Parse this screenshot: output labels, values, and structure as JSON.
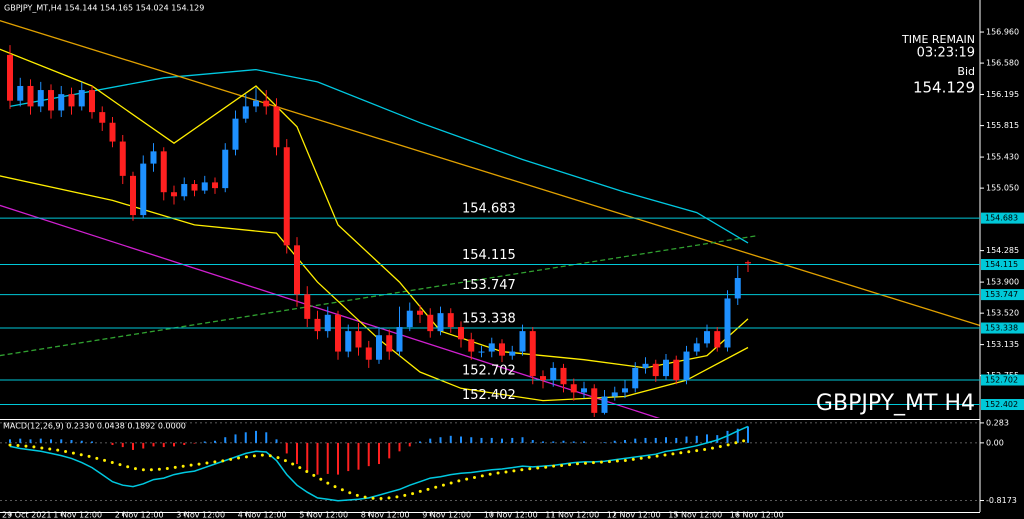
{
  "chart_data": [
    {
      "type": "candlestick",
      "header": "GBPJPY_MT,H4  154.144 154.165 154.024 154.129",
      "watermark": "GBPJPY_MT H4",
      "time_remain_label": "TIME REMAIN",
      "time_remain": "03:23:19",
      "bid_label": "Bid",
      "bid": 154.129,
      "categories": [
        "29 Oct 2021",
        null,
        null,
        null,
        null,
        "1 Nov 12:00",
        null,
        null,
        null,
        null,
        null,
        "2 Nov 12:00",
        null,
        null,
        null,
        null,
        null,
        "3 Nov 12:00",
        null,
        null,
        null,
        null,
        null,
        "4 Nov 12:00",
        null,
        null,
        null,
        null,
        null,
        "5 Nov 12:00",
        null,
        null,
        null,
        null,
        null,
        "8 Nov 12:00",
        null,
        null,
        null,
        null,
        null,
        "9 Nov 12:00",
        null,
        null,
        null,
        null,
        null,
        "10 Nov 12:00",
        null,
        null,
        null,
        null,
        null,
        "11 Nov 12:00",
        null,
        null,
        null,
        null,
        null,
        "12 Nov 12:00",
        null,
        null,
        null,
        null,
        null,
        "15 Nov 12:00",
        null,
        null,
        null,
        null,
        null,
        "16 Nov 12:00",
        null
      ],
      "open": [
        156.68,
        156.12,
        156.3,
        156.05,
        156.25,
        156.0,
        156.2,
        156.05,
        156.25,
        155.98,
        155.85,
        155.62,
        155.2,
        154.72,
        155.35,
        155.5,
        155.0,
        154.95,
        155.1,
        155.02,
        155.12,
        155.05,
        155.52,
        155.9,
        156.05,
        156.12,
        156.05,
        155.55,
        154.35,
        153.75,
        153.45,
        153.3,
        153.5,
        153.05,
        153.3,
        153.1,
        152.95,
        153.25,
        153.05,
        153.35,
        153.55,
        153.5,
        153.3,
        153.52,
        153.35,
        153.2,
        153.05,
        153.05,
        153.15,
        153.0,
        153.05,
        153.3,
        152.75,
        152.7,
        152.85,
        152.65,
        152.55,
        152.6,
        152.3,
        152.5,
        152.55,
        152.6,
        152.85,
        152.9,
        152.75,
        152.95,
        152.7,
        153.05,
        153.15,
        153.3,
        153.1,
        153.7,
        154.144
      ],
      "high": [
        156.8,
        156.4,
        156.38,
        156.35,
        156.32,
        156.3,
        156.28,
        156.35,
        156.3,
        156.05,
        155.92,
        155.7,
        155.25,
        155.45,
        155.6,
        155.55,
        155.08,
        155.18,
        155.15,
        155.2,
        155.18,
        155.6,
        156.0,
        156.2,
        156.28,
        156.25,
        156.15,
        155.65,
        154.45,
        153.85,
        153.55,
        153.6,
        153.55,
        153.38,
        153.4,
        153.18,
        153.35,
        153.32,
        153.6,
        153.65,
        153.62,
        153.58,
        153.6,
        153.58,
        153.42,
        153.28,
        153.12,
        153.22,
        153.2,
        153.12,
        153.38,
        153.35,
        152.82,
        152.92,
        152.9,
        152.72,
        152.68,
        152.65,
        152.58,
        152.62,
        152.7,
        152.92,
        152.98,
        152.95,
        153.02,
        153.0,
        153.12,
        153.22,
        153.38,
        153.35,
        153.8,
        154.1,
        154.165
      ],
      "low": [
        156.02,
        156.05,
        155.95,
        155.98,
        155.9,
        155.92,
        155.95,
        156.0,
        155.9,
        155.75,
        155.55,
        155.1,
        154.65,
        154.68,
        155.25,
        154.9,
        154.85,
        154.9,
        154.95,
        154.98,
        154.98,
        155.0,
        155.45,
        155.85,
        155.98,
        155.95,
        155.45,
        154.25,
        153.6,
        153.35,
        153.2,
        153.22,
        152.95,
        152.98,
        153.0,
        152.85,
        152.9,
        152.95,
        153.0,
        153.3,
        153.4,
        153.22,
        153.25,
        153.28,
        153.1,
        152.95,
        152.98,
        152.98,
        152.92,
        152.95,
        153.0,
        152.65,
        152.6,
        152.62,
        152.55,
        152.45,
        152.48,
        152.25,
        152.28,
        152.45,
        152.48,
        152.55,
        152.78,
        152.68,
        152.7,
        152.65,
        152.65,
        153.0,
        153.1,
        153.05,
        153.05,
        153.62,
        154.024
      ],
      "close": [
        156.12,
        156.3,
        156.05,
        156.25,
        156.0,
        156.2,
        156.05,
        156.25,
        155.98,
        155.85,
        155.62,
        155.2,
        154.72,
        155.35,
        155.5,
        155.0,
        154.95,
        155.1,
        155.02,
        155.12,
        155.05,
        155.52,
        155.9,
        156.05,
        156.12,
        156.05,
        155.55,
        154.35,
        153.75,
        153.45,
        153.3,
        153.5,
        153.05,
        153.3,
        153.1,
        152.95,
        153.25,
        153.05,
        153.35,
        153.55,
        153.5,
        153.3,
        153.52,
        153.35,
        153.2,
        153.05,
        153.05,
        153.15,
        153.0,
        153.05,
        153.3,
        152.75,
        152.7,
        152.85,
        152.65,
        152.55,
        152.6,
        152.3,
        152.5,
        152.55,
        152.6,
        152.85,
        152.9,
        152.75,
        152.95,
        152.7,
        153.05,
        153.15,
        153.3,
        153.1,
        153.7,
        153.95,
        154.129
      ],
      "up_color": "#1e90ff",
      "down_color": "#ff2020",
      "ylim": [
        152.237,
        157.352
      ],
      "yticks": [
        {
          "value": 156.96,
          "label": "156.960"
        },
        {
          "value": 156.58,
          "label": "156.580"
        },
        {
          "value": 156.195,
          "label": "156.195"
        },
        {
          "value": 155.815,
          "label": "155.815"
        },
        {
          "value": 155.43,
          "label": "155.430"
        },
        {
          "value": 155.05,
          "label": "155.050"
        },
        {
          "value": 154.285,
          "label": "154.285"
        },
        {
          "value": 153.9,
          "label": "153.900"
        },
        {
          "value": 153.52,
          "label": "153.520"
        },
        {
          "value": 153.135,
          "label": "153.135"
        },
        {
          "value": 152.755,
          "label": "152.755"
        }
      ],
      "levels": {
        "color": "#00c8d8",
        "values": [
          154.683,
          154.115,
          153.747,
          153.338,
          152.702,
          152.402
        ]
      },
      "overlays": [
        {
          "color": "#00c8e0",
          "points": [
            [
              0,
              156.05
            ],
            [
              15,
              156.4
            ],
            [
              24,
              156.5
            ],
            [
              30,
              156.35
            ],
            [
              40,
              155.85
            ],
            [
              50,
              155.4
            ],
            [
              60,
              155.0
            ],
            [
              67,
              154.75
            ],
            [
              72,
              154.38
            ]
          ]
        },
        {
          "color": "#e0a000",
          "points": [
            [
              -1,
              157.1
            ],
            [
              94.6,
              153.37
            ]
          ]
        },
        {
          "color": "#d020d0",
          "points": [
            [
              -1,
              154.84
            ],
            [
              63.4,
              152.23
            ]
          ]
        },
        {
          "color": "#30a030",
          "dash": true,
          "points": [
            [
              -1,
              153.0
            ],
            [
              73,
              154.47
            ]
          ]
        },
        {
          "color": "#ffee00",
          "points": [
            [
              -1,
              156.75
            ],
            [
              8,
              156.3
            ],
            [
              16,
              155.6
            ],
            [
              24,
              156.3
            ],
            [
              28,
              155.8
            ],
            [
              32,
              154.6
            ],
            [
              38,
              153.9
            ],
            [
              42,
              153.3
            ],
            [
              48,
              153.05
            ],
            [
              56,
              152.95
            ],
            [
              62,
              152.85
            ],
            [
              68,
              153.0
            ],
            [
              72,
              153.45
            ]
          ]
        },
        {
          "color": "#ffee00",
          "points": [
            [
              -1,
              155.2
            ],
            [
              10,
              154.9
            ],
            [
              18,
              154.6
            ],
            [
              26,
              154.5
            ],
            [
              30,
              153.9
            ],
            [
              36,
              153.2
            ],
            [
              40,
              152.8
            ],
            [
              44,
              152.6
            ],
            [
              52,
              152.45
            ],
            [
              60,
              152.5
            ],
            [
              66,
              152.7
            ],
            [
              72,
              153.1
            ]
          ]
        }
      ]
    },
    {
      "type": "macd",
      "label": "MACD(12,26,9) 0.2330 0.0438 0.1892 0.0000",
      "ylim": [
        -0.98,
        0.31
      ],
      "yticks": [
        0.283,
        {
          "value": 0,
          "label": "0.00"
        },
        -0.8173
      ],
      "histogram": {
        "up_color": "#1e90ff",
        "down_color": "#ff2020",
        "values": [
          0.05,
          0.06,
          0.05,
          0.06,
          0.05,
          0.05,
          0.04,
          0.03,
          0.02,
          0.0,
          -0.03,
          -0.06,
          -0.1,
          -0.08,
          -0.05,
          -0.06,
          -0.05,
          -0.03,
          -0.01,
          0.02,
          0.03,
          0.08,
          0.12,
          0.15,
          0.17,
          0.15,
          0.05,
          -0.15,
          -0.3,
          -0.4,
          -0.45,
          -0.44,
          -0.45,
          -0.4,
          -0.38,
          -0.33,
          -0.3,
          -0.22,
          -0.12,
          -0.05,
          0.02,
          0.06,
          0.08,
          0.1,
          0.09,
          0.08,
          0.07,
          0.07,
          0.06,
          0.07,
          0.08,
          0.04,
          0.02,
          0.02,
          0.03,
          0.02,
          0.02,
          0.0,
          0.01,
          0.03,
          0.04,
          0.06,
          0.07,
          0.07,
          0.08,
          0.07,
          0.09,
          0.1,
          0.12,
          0.11,
          0.17,
          0.2,
          0.233
        ]
      },
      "series": [
        {
          "color": "#00c8e0",
          "values": [
            -0.05,
            -0.08,
            -0.1,
            -0.12,
            -0.15,
            -0.18,
            -0.22,
            -0.28,
            -0.35,
            -0.45,
            -0.55,
            -0.6,
            -0.62,
            -0.58,
            -0.52,
            -0.5,
            -0.45,
            -0.42,
            -0.4,
            -0.35,
            -0.3,
            -0.25,
            -0.2,
            -0.15,
            -0.12,
            -0.13,
            -0.25,
            -0.45,
            -0.6,
            -0.7,
            -0.78,
            -0.8,
            -0.82,
            -0.81,
            -0.8,
            -0.78,
            -0.74,
            -0.7,
            -0.66,
            -0.6,
            -0.55,
            -0.5,
            -0.48,
            -0.45,
            -0.43,
            -0.42,
            -0.4,
            -0.38,
            -0.37,
            -0.35,
            -0.33,
            -0.34,
            -0.33,
            -0.32,
            -0.3,
            -0.28,
            -0.27,
            -0.27,
            -0.26,
            -0.24,
            -0.22,
            -0.2,
            -0.18,
            -0.16,
            -0.12,
            -0.1,
            -0.07,
            -0.04,
            0.0,
            0.04,
            0.1,
            0.17,
            0.233
          ]
        },
        {
          "color": "#ffee00",
          "dotted": true,
          "values": [
            -0.03,
            -0.04,
            -0.05,
            -0.07,
            -0.09,
            -0.11,
            -0.14,
            -0.17,
            -0.2,
            -0.24,
            -0.28,
            -0.32,
            -0.36,
            -0.38,
            -0.38,
            -0.37,
            -0.35,
            -0.33,
            -0.31,
            -0.29,
            -0.27,
            -0.25,
            -0.22,
            -0.2,
            -0.18,
            -0.17,
            -0.2,
            -0.26,
            -0.33,
            -0.41,
            -0.49,
            -0.57,
            -0.64,
            -0.7,
            -0.75,
            -0.78,
            -0.79,
            -0.78,
            -0.76,
            -0.73,
            -0.69,
            -0.65,
            -0.61,
            -0.57,
            -0.53,
            -0.5,
            -0.47,
            -0.44,
            -0.42,
            -0.4,
            -0.38,
            -0.36,
            -0.35,
            -0.33,
            -0.32,
            -0.3,
            -0.29,
            -0.28,
            -0.27,
            -0.26,
            -0.25,
            -0.23,
            -0.21,
            -0.19,
            -0.17,
            -0.15,
            -0.13,
            -0.11,
            -0.09,
            -0.06,
            -0.03,
            0.01,
            0.0438
          ]
        }
      ]
    }
  ]
}
